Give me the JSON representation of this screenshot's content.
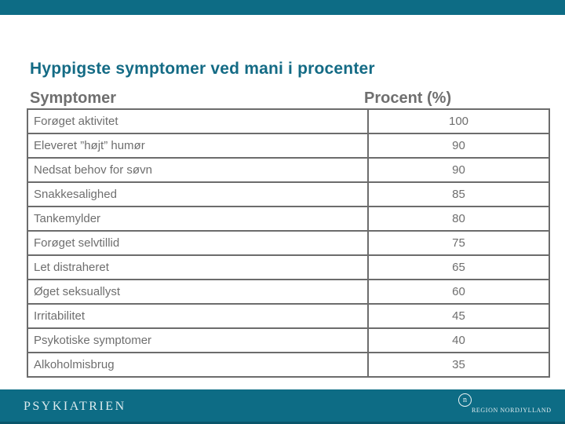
{
  "slide_title": "Hyppigste symptomer ved mani i procenter",
  "table": {
    "headers": {
      "symptom": "Symptomer",
      "procent": "Procent (%)"
    },
    "rows": [
      {
        "symptom": "Forøget aktivitet",
        "procent": "100"
      },
      {
        "symptom": "Eleveret ”højt” humør",
        "procent": "90"
      },
      {
        "symptom": "Nedsat behov for søvn",
        "procent": "90"
      },
      {
        "symptom": "Snakkesalighed",
        "procent": "85"
      },
      {
        "symptom": "Tankemylder",
        "procent": "80"
      },
      {
        "symptom": "Forøget selvtillid",
        "procent": "75"
      },
      {
        "symptom": "Let distraheret",
        "procent": "65"
      },
      {
        "symptom": "Øget seksuallyst",
        "procent": "60"
      },
      {
        "symptom": "Irritabilitet",
        "procent": "45"
      },
      {
        "symptom": "Psykotiske symptomer",
        "procent": "40"
      },
      {
        "symptom": "Alkoholmisbrug",
        "procent": "35"
      }
    ]
  },
  "footer": {
    "brand": "PSYKIATRIEN",
    "region_logo": {
      "letter": "n",
      "label": "REGION NORDJYLLAND"
    }
  },
  "colors": {
    "teal_band": "#0d6c85",
    "teal_band_dark_edge": "#09566b",
    "title_text": "#146b85",
    "header_text": "#6f6f6f",
    "table_border": "#6c6c6c",
    "table_text": "#6e6e6e",
    "footer_text": "#ddebee"
  }
}
